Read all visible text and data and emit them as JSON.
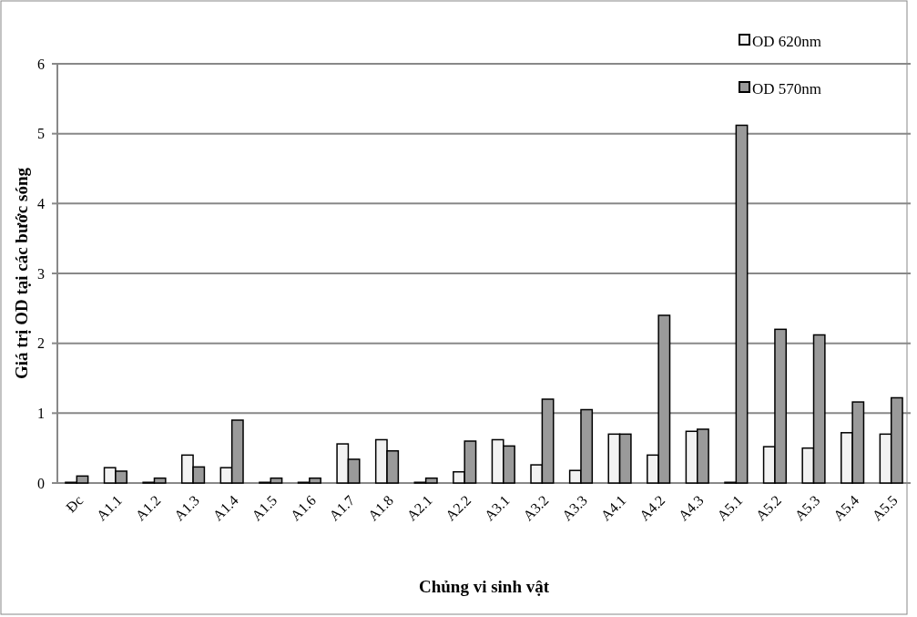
{
  "chart_data": {
    "type": "bar",
    "xlabel": "Chủng vi sinh vật",
    "ylabel": "Giá trị OD tại các bước sóng",
    "categories": [
      "Đc",
      "A1.1",
      "A1.2",
      "A1.3",
      "A1.4",
      "A1.5",
      "A1.6",
      "A1.7",
      "A1.8",
      "A2.1",
      "A2.2",
      "A3.1",
      "A3.2",
      "A3.3",
      "A4.1",
      "A4.2",
      "A4.3",
      "A5.1",
      "A5.2",
      "A5.3",
      "A5.4",
      "A5.5"
    ],
    "series": [
      {
        "name": "OD 620nm",
        "color": "#f2f2f2",
        "values": [
          0.01,
          0.22,
          0.01,
          0.4,
          0.22,
          0.01,
          0.01,
          0.56,
          0.62,
          0.01,
          0.16,
          0.62,
          0.26,
          0.18,
          0.7,
          0.4,
          0.74,
          0.01,
          0.52,
          0.5,
          0.72,
          0.7
        ]
      },
      {
        "name": "OD 570nm",
        "color": "#9a9a9a",
        "values": [
          0.1,
          0.17,
          0.07,
          0.23,
          0.9,
          0.07,
          0.07,
          0.34,
          0.46,
          0.07,
          0.6,
          0.53,
          1.2,
          1.05,
          0.7,
          2.4,
          0.77,
          5.12,
          2.2,
          2.12,
          1.16,
          1.22
        ]
      }
    ],
    "ylim": [
      0,
      6
    ],
    "yticks": [
      0,
      1,
      2,
      3,
      4,
      5,
      6
    ],
    "grid": "y",
    "legend": "top right"
  }
}
